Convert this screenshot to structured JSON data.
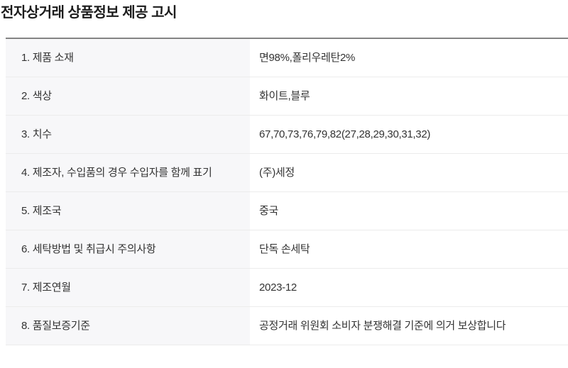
{
  "page": {
    "title": "전자상거래 상품정보 제공 고시"
  },
  "table": {
    "rows": [
      {
        "label": "1. 제품 소재",
        "value": "면98%,폴리우레탄2%"
      },
      {
        "label": "2. 색상",
        "value": "화이트,블루"
      },
      {
        "label": "3. 치수",
        "value": "67,70,73,76,79,82(27,28,29,30,31,32)"
      },
      {
        "label": "4. 제조자, 수입품의 경우 수입자를 함께 표기",
        "value": "(주)세정"
      },
      {
        "label": "5. 제조국",
        "value": "중국"
      },
      {
        "label": "6. 세탁방법 및 취급시 주의사항",
        "value": "단독 손세탁"
      },
      {
        "label": "7. 제조연월",
        "value": "2023-12"
      },
      {
        "label": "8. 품질보증기준",
        "value": "공정거래 위원회 소비자 분쟁해결 기준에 의거 보상합니다"
      }
    ]
  },
  "colors": {
    "label_cell_bg": "#f7f7f9",
    "table_top_border": "#848484",
    "row_separator": "#ececec",
    "body_text": "#333333",
    "title_text": "#1c1c1c",
    "page_bg": "#ffffff"
  }
}
